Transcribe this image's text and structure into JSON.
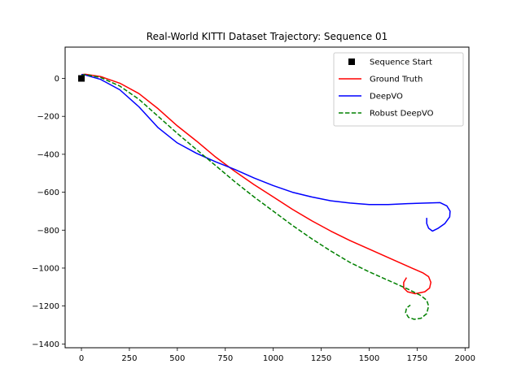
{
  "chart_data": {
    "type": "line",
    "title": "Real-World KITTI Dataset Trajectory: Sequence 01",
    "xlabel": "",
    "ylabel": "",
    "xlim": [
      -85,
      2020
    ],
    "ylim": [
      -1420,
      165
    ],
    "xticks": [
      0,
      250,
      500,
      750,
      1000,
      1250,
      1500,
      1750,
      2000
    ],
    "yticks": [
      0,
      -200,
      -400,
      -600,
      -800,
      -1000,
      -1200,
      -1400
    ],
    "xtick_labels": [
      "0",
      "250",
      "500",
      "750",
      "1000",
      "1250",
      "1500",
      "1750",
      "2000"
    ],
    "ytick_labels": [
      "0",
      "−200",
      "−400",
      "−600",
      "−800",
      "−1000",
      "−1200",
      "−1400"
    ],
    "grid": false,
    "legend_position": "top-right",
    "markers": [
      {
        "name": "Sequence Start",
        "x": 0,
        "y": 0,
        "color": "#000000",
        "shape": "square"
      }
    ],
    "series": [
      {
        "name": "Ground Truth",
        "color": "#ff0000",
        "dash": "solid",
        "points": [
          [
            0,
            20
          ],
          [
            20,
            22
          ],
          [
            100,
            10
          ],
          [
            200,
            -25
          ],
          [
            300,
            -80
          ],
          [
            400,
            -160
          ],
          [
            500,
            -250
          ],
          [
            600,
            -330
          ],
          [
            700,
            -415
          ],
          [
            800,
            -490
          ],
          [
            900,
            -560
          ],
          [
            1000,
            -625
          ],
          [
            1100,
            -690
          ],
          [
            1200,
            -750
          ],
          [
            1300,
            -805
          ],
          [
            1400,
            -855
          ],
          [
            1500,
            -900
          ],
          [
            1600,
            -945
          ],
          [
            1700,
            -990
          ],
          [
            1780,
            -1025
          ],
          [
            1810,
            -1045
          ],
          [
            1822,
            -1075
          ],
          [
            1815,
            -1105
          ],
          [
            1790,
            -1125
          ],
          [
            1740,
            -1135
          ],
          [
            1700,
            -1125
          ],
          [
            1680,
            -1105
          ],
          [
            1680,
            -1075
          ],
          [
            1695,
            -1050
          ]
        ]
      },
      {
        "name": "DeepVO",
        "color": "#0000ff",
        "dash": "solid",
        "points": [
          [
            0,
            20
          ],
          [
            20,
            18
          ],
          [
            100,
            -5
          ],
          [
            200,
            -60
          ],
          [
            300,
            -150
          ],
          [
            400,
            -260
          ],
          [
            500,
            -340
          ],
          [
            600,
            -395
          ],
          [
            700,
            -440
          ],
          [
            800,
            -480
          ],
          [
            900,
            -525
          ],
          [
            1000,
            -565
          ],
          [
            1100,
            -600
          ],
          [
            1200,
            -625
          ],
          [
            1300,
            -645
          ],
          [
            1400,
            -657
          ],
          [
            1500,
            -665
          ],
          [
            1600,
            -665
          ],
          [
            1700,
            -660
          ],
          [
            1800,
            -657
          ],
          [
            1870,
            -655
          ],
          [
            1905,
            -672
          ],
          [
            1922,
            -700
          ],
          [
            1920,
            -730
          ],
          [
            1895,
            -765
          ],
          [
            1860,
            -790
          ],
          [
            1830,
            -805
          ],
          [
            1810,
            -790
          ],
          [
            1800,
            -765
          ],
          [
            1800,
            -735
          ]
        ]
      },
      {
        "name": "Robust DeepVO",
        "color": "#008000",
        "dash": "dashed",
        "points": [
          [
            0,
            15
          ],
          [
            20,
            20
          ],
          [
            100,
            5
          ],
          [
            200,
            -40
          ],
          [
            300,
            -110
          ],
          [
            400,
            -200
          ],
          [
            500,
            -290
          ],
          [
            600,
            -375
          ],
          [
            700,
            -460
          ],
          [
            800,
            -545
          ],
          [
            900,
            -625
          ],
          [
            1000,
            -700
          ],
          [
            1100,
            -775
          ],
          [
            1200,
            -845
          ],
          [
            1300,
            -910
          ],
          [
            1400,
            -970
          ],
          [
            1500,
            -1020
          ],
          [
            1600,
            -1065
          ],
          [
            1700,
            -1110
          ],
          [
            1770,
            -1145
          ],
          [
            1800,
            -1170
          ],
          [
            1810,
            -1200
          ],
          [
            1800,
            -1240
          ],
          [
            1770,
            -1265
          ],
          [
            1735,
            -1270
          ],
          [
            1705,
            -1260
          ],
          [
            1690,
            -1235
          ],
          [
            1695,
            -1210
          ],
          [
            1715,
            -1195
          ]
        ]
      }
    ]
  }
}
